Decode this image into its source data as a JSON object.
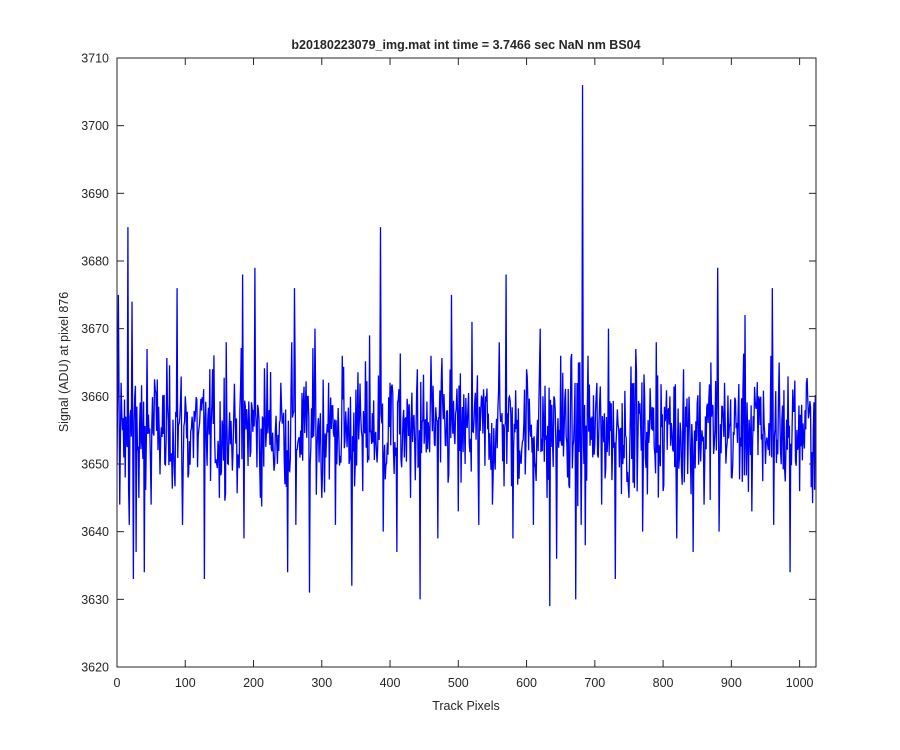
{
  "chart_data": {
    "type": "line",
    "title": "b20180223079_img.mat int time = 3.7466 sec  NaN nm BS04",
    "xlabel": "Track Pixels",
    "ylabel": "Signal (ADU) at pixel 876",
    "xlim": [
      0,
      1024
    ],
    "ylim": [
      3620,
      3710
    ],
    "xticks": [
      0,
      100,
      200,
      300,
      400,
      500,
      600,
      700,
      800,
      900,
      1000
    ],
    "yticks": [
      3620,
      3630,
      3640,
      3650,
      3660,
      3670,
      3680,
      3690,
      3700,
      3710
    ],
    "grid": false,
    "box": true,
    "series_color": "#0000ff",
    "noise_model": {
      "mean": 3655,
      "std": 8,
      "min": 3629,
      "max": 3685
    },
    "series": [
      {
        "x": [
          0,
          2,
          4,
          6,
          8,
          12,
          16,
          18,
          20,
          22,
          24,
          26,
          28,
          30,
          32,
          40,
          44,
          50,
          56,
          70,
          88,
          96,
          100,
          104,
          110,
          128,
          140,
          146,
          150,
          160,
          170,
          180,
          184,
          186,
          200,
          202,
          210,
          220,
          230,
          240,
          250,
          256,
          260,
          262,
          280,
          282,
          290,
          300,
          310,
          320,
          330,
          340,
          344,
          350,
          360,
          370,
          380,
          386,
          388,
          390,
          400,
          410,
          420,
          430,
          440,
          444,
          450,
          460,
          470,
          480,
          490,
          500,
          510,
          520,
          530,
          540,
          550,
          560,
          570,
          580,
          590,
          600,
          610,
          620,
          630,
          634,
          640,
          644,
          650,
          660,
          670,
          672,
          676,
          680,
          682,
          684,
          686,
          690,
          700,
          710,
          720,
          730,
          740,
          750,
          760,
          770,
          780,
          790,
          800,
          810,
          820,
          830,
          840,
          844,
          850,
          860,
          870,
          878,
          880,
          882,
          890,
          900,
          910,
          920,
          930,
          940,
          950,
          958,
          960,
          962,
          970,
          980,
          986,
          990,
          1000,
          1010,
          1020,
          1024
        ],
        "y": [
          3650,
          3675,
          3644,
          3662,
          3655,
          3648,
          3685,
          3641,
          3658,
          3674,
          3633,
          3660,
          3637,
          3652,
          3645,
          3634,
          3667,
          3644,
          3661,
          3650,
          3676,
          3641,
          3660,
          3648,
          3657,
          3633,
          3664,
          3650,
          3645,
          3668,
          3652,
          3658,
          3678,
          3639,
          3658,
          3679,
          3645,
          3665,
          3649,
          3662,
          3634,
          3668,
          3676,
          3641,
          3660,
          3631,
          3670,
          3645,
          3662,
          3641,
          3666,
          3650,
          3632,
          3661,
          3646,
          3669,
          3652,
          3685,
          3656,
          3640,
          3662,
          3637,
          3658,
          3645,
          3664,
          3630,
          3653,
          3666,
          3639,
          3657,
          3675,
          3643,
          3650,
          3671,
          3641,
          3660,
          3644,
          3668,
          3678,
          3639,
          3652,
          3664,
          3641,
          3670,
          3645,
          3629,
          3660,
          3636,
          3666,
          3648,
          3657,
          3630,
          3665,
          3641,
          3706,
          3650,
          3638,
          3666,
          3653,
          3644,
          3670,
          3633,
          3659,
          3645,
          3667,
          3640,
          3655,
          3668,
          3646,
          3660,
          3639,
          3664,
          3651,
          3637,
          3659,
          3644,
          3665,
          3652,
          3679,
          3640,
          3662,
          3648,
          3658,
          3672,
          3643,
          3660,
          3650,
          3666,
          3676,
          3641,
          3665,
          3652,
          3634,
          3661,
          3646,
          3662,
          3655,
          3650
        ]
      }
    ]
  }
}
